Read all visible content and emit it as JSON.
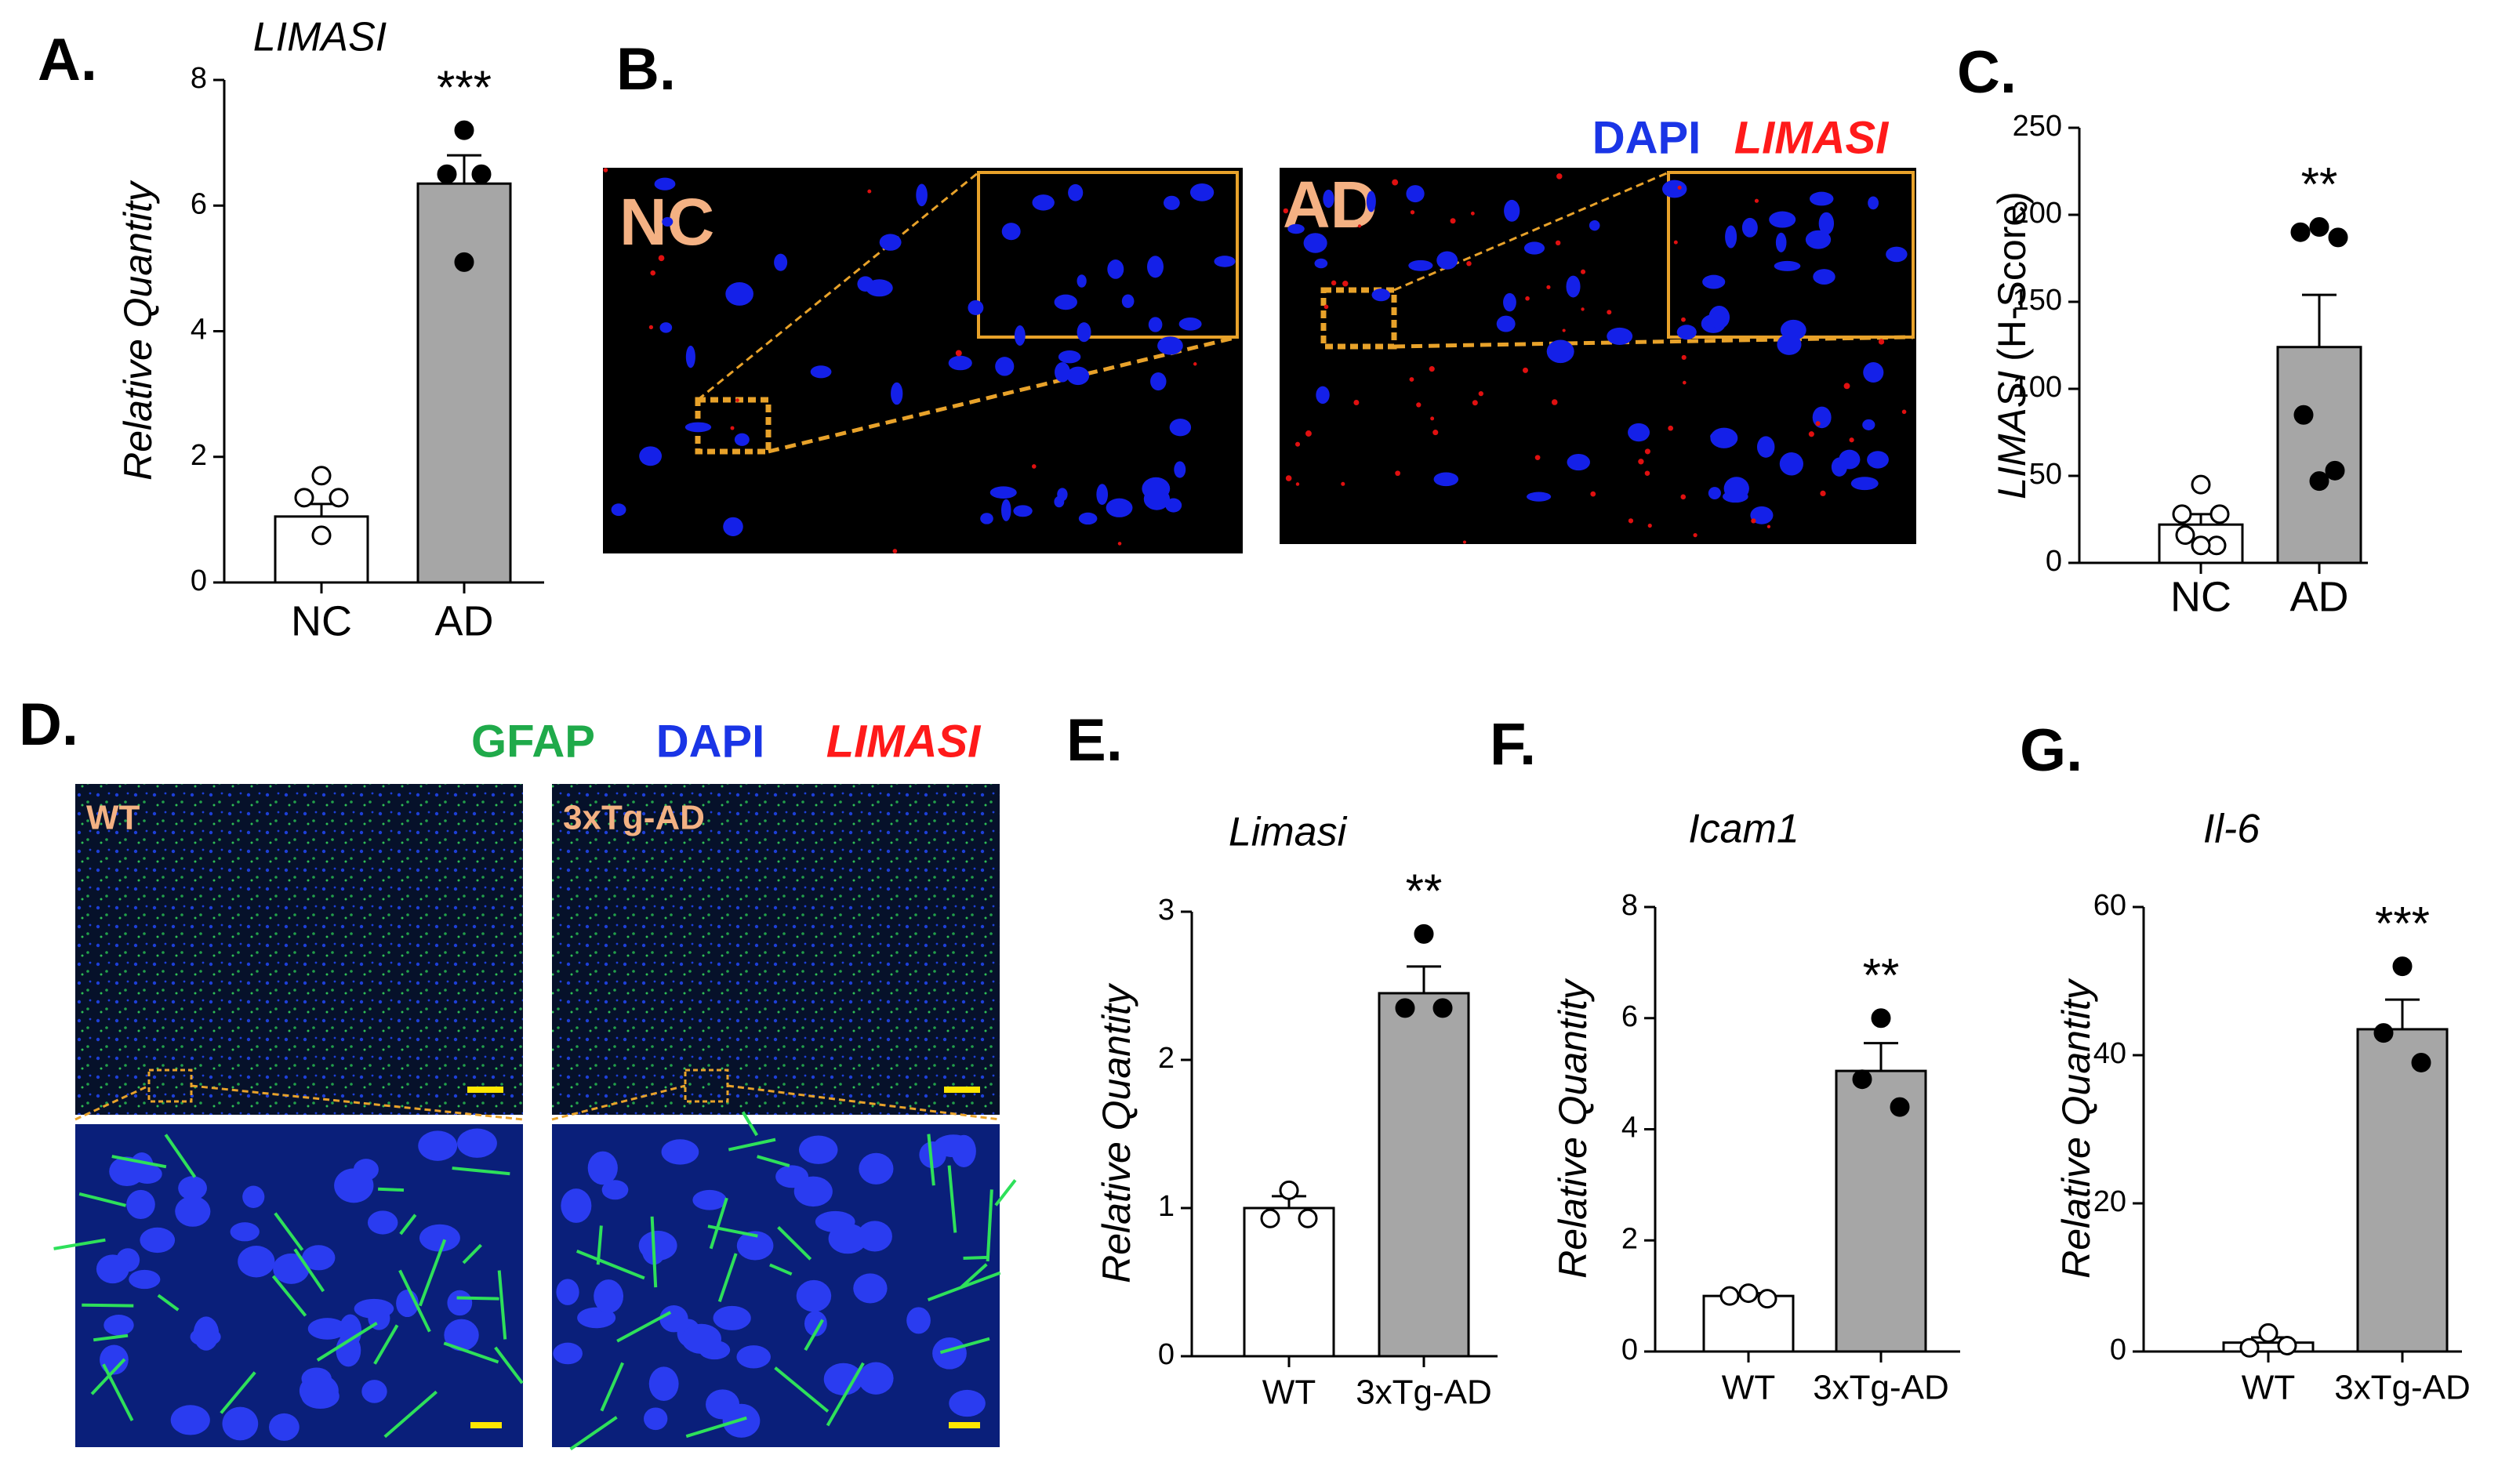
{
  "figure": {
    "panel_b": {
      "letter": "B.",
      "left_label": "NC",
      "right_label": "AD",
      "legend": [
        "DAPI",
        "LIMASI"
      ]
    },
    "panel_d": {
      "letter": "D.",
      "left_label": "WT",
      "right_label": "3xTg-AD",
      "legend": [
        "GFAP",
        "DAPI",
        "LIMASI"
      ]
    }
  },
  "chart_data": [
    {
      "type": "bar",
      "panel": "A.",
      "title": "LIMASI",
      "y_label": "Relative Quantity",
      "categories": [
        "NC",
        "AD"
      ],
      "values": [
        1.05,
        6.35
      ],
      "errors": [
        0.2,
        0.45
      ],
      "points": [
        [
          1.7,
          1.35,
          1.35,
          0.75
        ],
        [
          7.2,
          6.5,
          6.5,
          5.1
        ]
      ],
      "colors": [
        "#ffffff",
        "#a6a6a6"
      ],
      "point_colors": [
        "#ffffff",
        "#000000"
      ],
      "ylim": [
        0,
        8
      ],
      "yticks": [
        0,
        2,
        4,
        6,
        8
      ],
      "significance": "***"
    },
    {
      "type": "bar",
      "panel": "C.",
      "y_label_italic": "LIMASI",
      "y_label": "(H-Score)",
      "categories": [
        "NC",
        "AD"
      ],
      "values": [
        22,
        124
      ],
      "errors": [
        6,
        30
      ],
      "points": [
        [
          45,
          28,
          28,
          16,
          10,
          10
        ],
        [
          193,
          190,
          187,
          85,
          53,
          47
        ]
      ],
      "colors": [
        "#ffffff",
        "#a6a6a6"
      ],
      "point_colors": [
        "#ffffff",
        "#000000"
      ],
      "ylim": [
        0,
        250
      ],
      "yticks": [
        0,
        50,
        100,
        150,
        200,
        250
      ],
      "significance": "**"
    },
    {
      "type": "bar",
      "panel": "E.",
      "title": "Limasi",
      "y_label": "Relative Quantity",
      "categories": [
        "WT",
        "3xTg-AD"
      ],
      "values": [
        1.0,
        2.45
      ],
      "errors": [
        0.08,
        0.18
      ],
      "points": [
        [
          1.12,
          0.93,
          0.93
        ],
        [
          2.85,
          2.35,
          2.35
        ]
      ],
      "colors": [
        "#ffffff",
        "#a6a6a6"
      ],
      "point_colors": [
        "#ffffff",
        "#000000"
      ],
      "ylim": [
        0,
        3
      ],
      "yticks": [
        0,
        1,
        2,
        3
      ],
      "significance": "**"
    },
    {
      "type": "bar",
      "panel": "F.",
      "title": "Icam1",
      "y_label": "Relative Quantity",
      "categories": [
        "WT",
        "3xTg-AD"
      ],
      "values": [
        1.0,
        5.05
      ],
      "errors": [
        0.05,
        0.5
      ],
      "points": [
        [
          1.05,
          1.0,
          0.95
        ],
        [
          6.0,
          4.9,
          4.4
        ]
      ],
      "colors": [
        "#ffffff",
        "#a6a6a6"
      ],
      "point_colors": [
        "#ffffff",
        "#000000"
      ],
      "ylim": [
        0,
        8
      ],
      "yticks": [
        0,
        2,
        4,
        6,
        8
      ],
      "significance": "**"
    },
    {
      "type": "bar",
      "panel": "G.",
      "title": "Il-6",
      "y_label": "Relative Quantity",
      "categories": [
        "WT",
        "3xTg-AD"
      ],
      "values": [
        1.2,
        43.5
      ],
      "errors": [
        0.7,
        4
      ],
      "points": [
        [
          2.5,
          0.5,
          0.8
        ],
        [
          52,
          43,
          39
        ]
      ],
      "colors": [
        "#ffffff",
        "#a6a6a6"
      ],
      "point_colors": [
        "#ffffff",
        "#000000"
      ],
      "ylim": [
        0,
        60
      ],
      "yticks": [
        0,
        20,
        40,
        60
      ],
      "significance": "***"
    }
  ]
}
